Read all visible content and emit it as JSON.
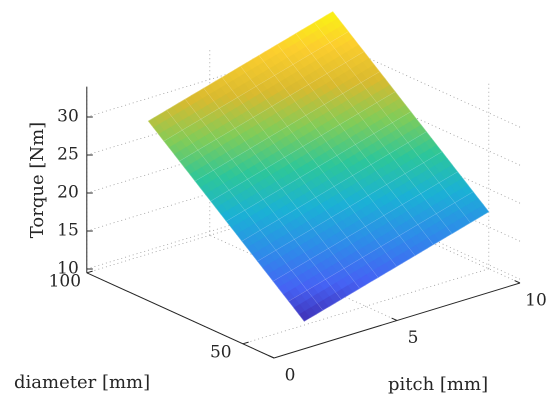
{
  "chart_data": {
    "type": "surface",
    "title": "",
    "xlabel": "pitch [mm]",
    "ylabel": "diameter [mm]",
    "zlabel": "Torque [Nm]",
    "x_ticks": [
      "0",
      "5",
      "10"
    ],
    "y_ticks": [
      "50",
      "100"
    ],
    "z_ticks": [
      "10",
      "15",
      "20",
      "25",
      "30"
    ],
    "xlim": [
      0,
      10
    ],
    "ylim": [
      40,
      100
    ],
    "zlim": [
      9.5,
      34
    ],
    "grid": true,
    "colormap": "parula",
    "colormap_colors": [
      "#3e26a8",
      "#4662f4",
      "#2e8ce9",
      "#1bb1d5",
      "#2dc69a",
      "#81cc59",
      "#d9ba2f",
      "#fcce2e",
      "#f9fb0e"
    ],
    "surface_edge_color": "#ffffff",
    "surface": {
      "pitch_range": [
        2.5,
        10
      ],
      "diameter_range": [
        50,
        100
      ],
      "torque_min": 9.5,
      "torque_max": 34.5,
      "note_points": [
        {
          "pitch": 2.5,
          "diameter": 50,
          "torque": 10
        },
        {
          "pitch": 10,
          "diameter": 50,
          "torque": 17
        },
        {
          "pitch": 2.5,
          "diameter": 100,
          "torque": 27
        },
        {
          "pitch": 10,
          "diameter": 100,
          "torque": 34
        }
      ]
    }
  }
}
